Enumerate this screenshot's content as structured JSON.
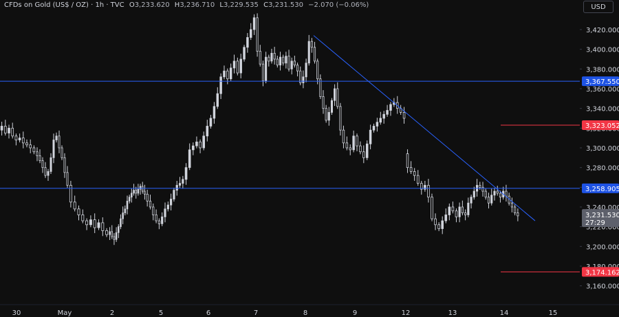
{
  "header": {
    "symbol": "CFDs on Gold (US$ / OZ) · 1h · TVC",
    "o_label": "O",
    "o_value": "3,233.620",
    "h_label": "H",
    "h_value": "3,236.710",
    "l_label": "L",
    "l_value": "3,229.535",
    "c_label": "C",
    "c_value": "3,231.530",
    "change": "−2.070 (−0.06%)"
  },
  "currency_button": "USD",
  "colors": {
    "background": "#0f0f0f",
    "candle": "#d1d4dc",
    "trendline": "#2962ff",
    "support_resistance": "#2962ff",
    "red_level": "#f23645",
    "axis_text": "#d1d4dc"
  },
  "chart_data": {
    "type": "candlestick",
    "y_axis": {
      "ticks": [
        "3,160.000",
        "3,180.000",
        "3,200.000",
        "3,220.000",
        "3,240.000",
        "3,260.000",
        "3,280.000",
        "3,300.000",
        "3,320.000",
        "3,340.000",
        "3,360.000",
        "3,380.000",
        "3,400.000",
        "3,420.000"
      ],
      "range": [
        3148,
        3448
      ],
      "position": "right"
    },
    "x_axis": {
      "labels": [
        "30",
        "May",
        "2",
        "5",
        "6",
        "7",
        "8",
        "9",
        "12",
        "13",
        "14",
        "15"
      ]
    },
    "horizontal_lines": [
      {
        "price": 3367.55,
        "label": "3,367.550",
        "style": "blue",
        "full_width": true
      },
      {
        "price": 3258.905,
        "label": "3,258.905",
        "style": "blue",
        "full_width": true
      },
      {
        "price": 3323.052,
        "label": "3,323.052",
        "style": "red",
        "full_width": false
      },
      {
        "price": 3174.162,
        "label": "3,174.162",
        "style": "red",
        "full_width": false
      }
    ],
    "current_price": {
      "label": "3,231.530",
      "countdown": "27:29",
      "price": 3231.53
    },
    "trendline": {
      "from": {
        "session": "8",
        "price": 3414
      },
      "to": {
        "session": "14",
        "price": 3226
      }
    },
    "candles_by_session": [
      {
        "session": "30",
        "closes": [
          3318,
          3322,
          3315,
          3320,
          3312,
          3308,
          3310,
          3305,
          3303,
          3300,
          3296
        ]
      },
      {
        "session": "30-late",
        "closes": [
          3296,
          3292,
          3287,
          3280,
          3272,
          3276,
          3290,
          3308,
          3312,
          3300,
          3290,
          3275,
          3262
        ]
      },
      {
        "session": "May",
        "closes": [
          3262,
          3245,
          3238,
          3232,
          3226,
          3222,
          3227,
          3219,
          3224,
          3216,
          3212
        ]
      },
      {
        "session": "2",
        "closes": [
          3212,
          3215,
          3210,
          3207,
          3214,
          3220,
          3228,
          3234,
          3238,
          3246,
          3250,
          3254,
          3257,
          3254,
          3258,
          3261,
          3256,
          3253
        ]
      },
      {
        "session": "5",
        "closes": [
          3253,
          3246,
          3240,
          3232,
          3226,
          3223,
          3230,
          3238,
          3242,
          3248,
          3257,
          3262,
          3264,
          3268
        ]
      },
      {
        "session": "5-late",
        "closes": [
          3268,
          3280,
          3298,
          3302,
          3306,
          3300,
          3312,
          3322,
          3330
        ]
      },
      {
        "session": "6",
        "closes": [
          3330,
          3342,
          3355,
          3372,
          3378,
          3370,
          3381,
          3388,
          3376,
          3390,
          3402,
          3412,
          3420,
          3432
        ]
      },
      {
        "session": "7",
        "closes": [
          3432,
          3398,
          3385,
          3368,
          3392,
          3388,
          3396,
          3390,
          3384,
          3392,
          3386,
          3393,
          3380,
          3388,
          3384,
          3378,
          3366,
          3372
        ]
      },
      {
        "session": "8",
        "closes": [
          3372,
          3386,
          3408,
          3402,
          3388,
          3370,
          3352,
          3340,
          3328,
          3336,
          3348,
          3360,
          3342,
          3318
        ]
      },
      {
        "session": "9",
        "closes": [
          3318,
          3305,
          3300,
          3298,
          3312,
          3302,
          3296,
          3290,
          3304,
          3318,
          3322,
          3326,
          3330,
          3334,
          3338,
          3344,
          3346,
          3340,
          3336,
          3330
        ]
      },
      {
        "session": "12",
        "closes": [
          3294,
          3280,
          3276,
          3272,
          3264,
          3258,
          3262,
          3250,
          3228,
          3222,
          3218,
          3226,
          3232,
          3240,
          3236,
          3230
        ]
      },
      {
        "session": "13",
        "closes": [
          3230,
          3240,
          3234,
          3232,
          3244,
          3250,
          3256,
          3262,
          3260,
          3256,
          3250,
          3244,
          3252,
          3256,
          3254,
          3250,
          3256,
          3251,
          3244,
          3240,
          3234,
          3231
        ]
      }
    ]
  }
}
